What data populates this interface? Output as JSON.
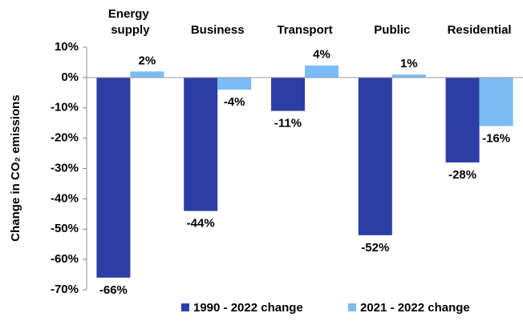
{
  "chart_data": {
    "type": "bar",
    "ylabel": "Change in  CO₂ emissions",
    "categories": [
      "Energy supply",
      "Business",
      "Transport",
      "Public",
      "Residential"
    ],
    "series": [
      {
        "name": "1990 - 2022 change",
        "color": "#2c3ea6",
        "values": [
          -66,
          -44,
          -11,
          -52,
          -28
        ],
        "value_labels": [
          "-66%",
          "-44%",
          "-11%",
          "-52%",
          "-28%"
        ]
      },
      {
        "name": "2021 - 2022 change",
        "color": "#7cbcf6",
        "values": [
          2,
          -4,
          4,
          1,
          -16
        ],
        "value_labels": [
          "2%",
          "-4%",
          "4%",
          "1%",
          "-16%"
        ]
      }
    ],
    "ylim": [
      -70,
      10
    ],
    "yticks": [
      {
        "value": 10,
        "label": "10%"
      },
      {
        "value": 0,
        "label": "0%"
      },
      {
        "value": -10,
        "label": "-10%"
      },
      {
        "value": -20,
        "label": "-20%"
      },
      {
        "value": -30,
        "label": "-30%"
      },
      {
        "value": -40,
        "label": "-40%"
      },
      {
        "value": -50,
        "label": "-50%"
      },
      {
        "value": -60,
        "label": "-60%"
      },
      {
        "value": -70,
        "label": "-70%"
      }
    ],
    "legend": "bottom"
  }
}
